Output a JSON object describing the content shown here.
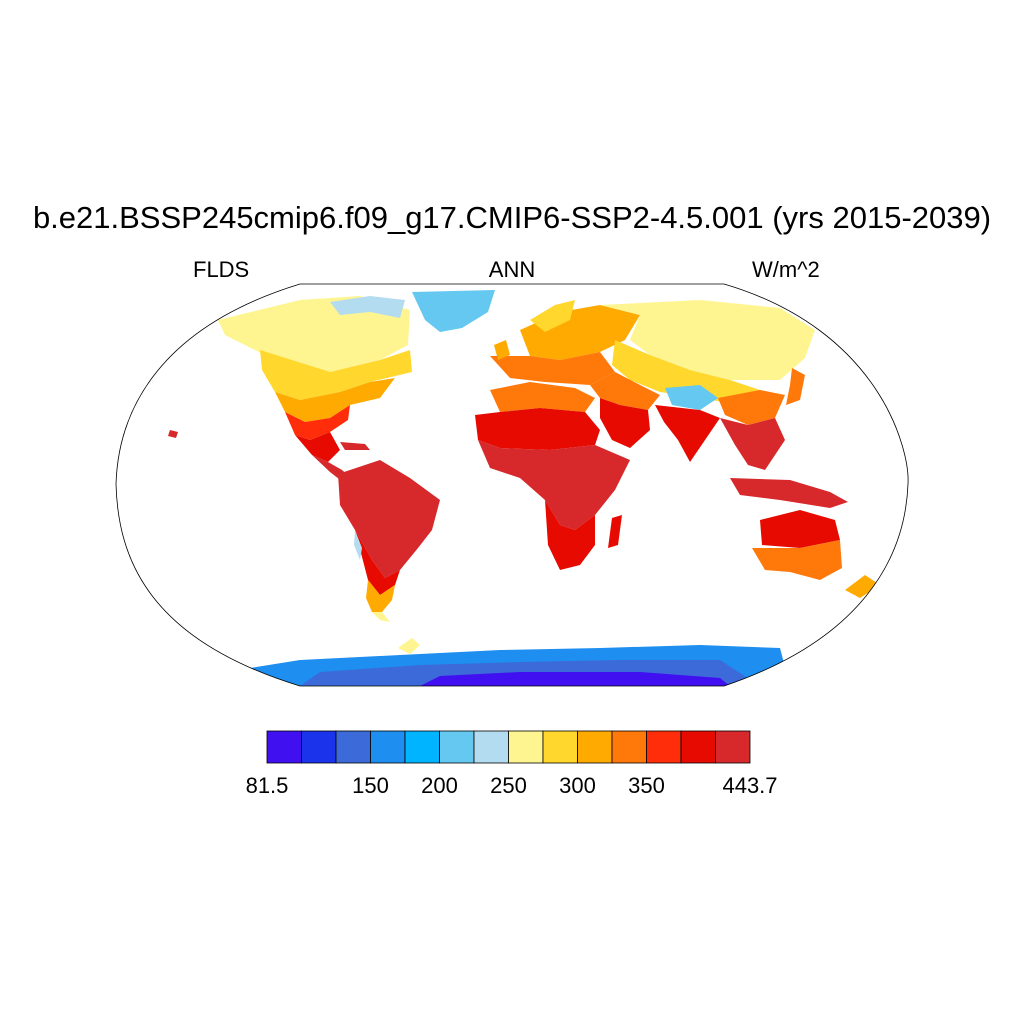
{
  "title": "b.e21.BSSP245cmip6.f09_g17.CMIP6-SSP2-4.5.001 (yrs 2015-2039)",
  "subtitle": {
    "left": "FLDS",
    "center": "ANN",
    "right": "W/m^2"
  },
  "colorbar": {
    "min": 81.5,
    "max": 443.7,
    "colors": [
      "#4010f0",
      "#1a33eb",
      "#3c6ad9",
      "#1e8ff0",
      "#00b4ff",
      "#64c8f0",
      "#b4dcf0",
      "#fff590",
      "#ffd72d",
      "#ffaa00",
      "#ff780a",
      "#ff2d0a",
      "#e60a00",
      "#d7282b"
    ],
    "tick_labels": [
      {
        "label": "81.5",
        "slot": 0
      },
      {
        "label": "150",
        "slot": 3
      },
      {
        "label": "200",
        "slot": 5
      },
      {
        "label": "250",
        "slot": 7
      },
      {
        "label": "300",
        "slot": 9
      },
      {
        "label": "350",
        "slot": 11
      },
      {
        "label": "443.7",
        "slot": 14
      }
    ]
  },
  "chart_data": {
    "type": "heatmap",
    "title": "b.e21.BSSP245cmip6.f09_g17.CMIP6-SSP2-4.5.001 (yrs 2015-2039)",
    "variable": "FLDS",
    "season": "ANN",
    "units": "W/m^2",
    "projection": "Robinson (land only)",
    "range": [
      81.5,
      443.7
    ],
    "levels": [
      81.5,
      150,
      200,
      250,
      300,
      350,
      443.7
    ],
    "regions": [
      {
        "name": "Tropical land (Amazon, Central Africa, SE Asia)",
        "approx_value": 420
      },
      {
        "name": "Sahara / Arabia",
        "approx_value": 370
      },
      {
        "name": "Southern Australia",
        "approx_value": 350
      },
      {
        "name": "Mid-latitude Eurasia / North America",
        "approx_value": 300
      },
      {
        "name": "Boreal / Arctic land",
        "approx_value": 260
      },
      {
        "name": "Tibetan Plateau",
        "approx_value": 200
      },
      {
        "name": "Greenland",
        "approx_value": 175
      },
      {
        "name": "Antarctica interior",
        "approx_value": 100
      }
    ]
  }
}
